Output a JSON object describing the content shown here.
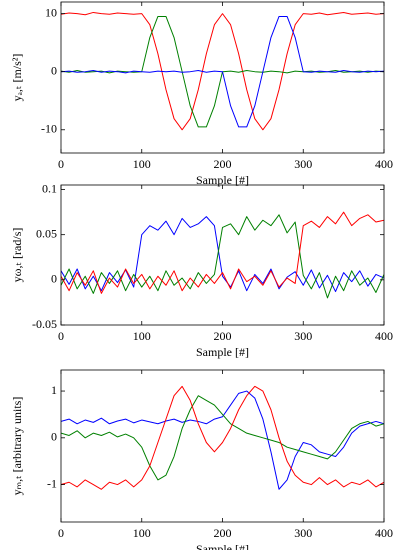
{
  "chart_data": [
    {
      "type": "line",
      "xlabel": "Sample [#]",
      "ylabel": "yₐ,ₜ [m/s²]",
      "xlim": [
        0,
        400
      ],
      "xticks": [
        0,
        100,
        200,
        300,
        400
      ],
      "ylim": [
        -14,
        12
      ],
      "yticks": [
        -10,
        0,
        10
      ],
      "x": [
        0,
        10,
        20,
        30,
        40,
        50,
        60,
        70,
        80,
        90,
        100,
        110,
        120,
        130,
        140,
        150,
        160,
        170,
        180,
        190,
        200,
        210,
        220,
        230,
        240,
        250,
        260,
        270,
        280,
        290,
        300,
        310,
        320,
        330,
        340,
        350,
        360,
        370,
        380,
        390,
        400
      ],
      "series": [
        {
          "color": "#ff0000",
          "values": [
            9.9,
            10.1,
            10,
            9.8,
            10.2,
            10,
            9.9,
            10.1,
            10,
            9.9,
            10,
            8.09,
            3.09,
            -3.09,
            -8.09,
            -10,
            -8.09,
            -3.09,
            3.09,
            8.09,
            10,
            8.09,
            3.09,
            -3.09,
            -8.09,
            -10,
            -8.09,
            -3.09,
            3.09,
            8.09,
            10,
            9.9,
            10.1,
            9.8,
            10,
            10.2,
            9.9,
            10,
            10.1,
            9.9,
            10
          ]
        },
        {
          "color": "#008000",
          "values": [
            0.1,
            -0.1,
            0.2,
            -0.1,
            0,
            0.1,
            -0.2,
            0.1,
            0,
            -0.1,
            0,
            5.88,
            9.51,
            9.51,
            5.88,
            0,
            -5.88,
            -9.51,
            -9.51,
            -5.88,
            0,
            0.1,
            -0.1,
            0.2,
            0,
            -0.1,
            0.1,
            0,
            -0.2,
            0.1,
            0,
            0.1,
            -0.1,
            0,
            0.2,
            -0.1,
            0,
            0.1,
            -0.1,
            0.1,
            0
          ]
        },
        {
          "color": "#0000ff",
          "values": [
            0,
            0.1,
            -0.1,
            0,
            0.2,
            -0.1,
            0.1,
            0,
            -0.2,
            0.1,
            0,
            -0.1,
            0.1,
            0,
            0.1,
            -0.1,
            0,
            0.2,
            -0.1,
            0.1,
            0,
            -5.88,
            -9.51,
            -9.51,
            -5.88,
            0,
            5.88,
            9.51,
            9.51,
            5.88,
            0,
            -0.1,
            0.1,
            0,
            -0.1,
            0.2,
            0,
            -0.1,
            0.1,
            0,
            0.1
          ]
        }
      ]
    },
    {
      "type": "line",
      "xlabel": "Sample [#]",
      "ylabel": "yω,ₜ [rad/s]",
      "xlim": [
        0,
        400
      ],
      "xticks": [
        0,
        100,
        200,
        300,
        400
      ],
      "ylim": [
        -0.05,
        0.105
      ],
      "yticks": [
        -0.05,
        0,
        0.05,
        0.1
      ],
      "x": [
        0,
        10,
        20,
        30,
        40,
        50,
        60,
        70,
        80,
        90,
        100,
        110,
        120,
        130,
        140,
        150,
        160,
        170,
        180,
        190,
        200,
        210,
        220,
        230,
        240,
        250,
        260,
        270,
        280,
        290,
        300,
        310,
        320,
        330,
        340,
        350,
        360,
        370,
        380,
        390,
        400
      ],
      "series": [
        {
          "color": "#0000ff",
          "values": [
            0.01,
            -0.005,
            0.012,
            -0.01,
            0.004,
            -0.012,
            0.008,
            -0.003,
            0.011,
            -0.008,
            0.05,
            0.06,
            0.055,
            0.065,
            0.05,
            0.068,
            0.058,
            0.062,
            0.07,
            0.06,
            0.004,
            -0.008,
            0.01,
            -0.012,
            0.006,
            -0.004,
            0.012,
            -0.01,
            0.003,
            0.009,
            -0.006,
            0.011,
            -0.009,
            0.005,
            -0.013,
            0.008,
            -0.002,
            0.01,
            -0.007,
            0.006,
            0.002
          ]
        },
        {
          "color": "#008000",
          "values": [
            -0.006,
            0.012,
            -0.01,
            0.004,
            -0.015,
            0.008,
            -0.004,
            0.01,
            -0.012,
            0.006,
            -0.008,
            0.004,
            -0.012,
            0.01,
            -0.006,
            0.002,
            -0.01,
            0.008,
            -0.004,
            0.006,
            0.058,
            0.062,
            0.05,
            0.07,
            0.055,
            0.066,
            0.06,
            0.072,
            0.052,
            0.064,
            0.005,
            -0.01,
            0.008,
            -0.02,
            0.004,
            -0.012,
            0.01,
            -0.006,
            0.002,
            -0.014,
            0.006
          ]
        },
        {
          "color": "#ff0000",
          "values": [
            0.004,
            -0.012,
            0.008,
            -0.006,
            0.01,
            -0.015,
            0.002,
            -0.008,
            0.012,
            -0.004,
            0.006,
            -0.01,
            0.004,
            -0.006,
            0.01,
            -0.012,
            0.002,
            -0.008,
            0.006,
            -0.004,
            0.008,
            -0.01,
            0.012,
            -0.002,
            0.004,
            -0.006,
            0.01,
            -0.008,
            0.002,
            -0.004,
            0.06,
            0.065,
            0.058,
            0.07,
            0.062,
            0.075,
            0.06,
            0.068,
            0.072,
            0.064,
            0.066
          ]
        }
      ]
    },
    {
      "type": "line",
      "xlabel": "Sample [#]",
      "ylabel": "yₘ,ₜ [arbitrary units]",
      "xlim": [
        0,
        400
      ],
      "xticks": [
        0,
        100,
        200,
        300,
        400
      ],
      "ylim": [
        -1.8,
        1.45
      ],
      "yticks": [
        -1,
        0,
        1
      ],
      "x": [
        0,
        10,
        20,
        30,
        40,
        50,
        60,
        70,
        80,
        90,
        100,
        110,
        120,
        130,
        140,
        150,
        160,
        170,
        180,
        190,
        200,
        210,
        220,
        230,
        240,
        250,
        260,
        270,
        280,
        290,
        300,
        310,
        320,
        330,
        340,
        350,
        360,
        370,
        380,
        390,
        400
      ],
      "series": [
        {
          "color": "#0000ff",
          "values": [
            0.35,
            0.4,
            0.3,
            0.38,
            0.33,
            0.42,
            0.3,
            0.36,
            0.4,
            0.32,
            0.38,
            0.34,
            0.3,
            0.36,
            0.4,
            0.33,
            0.38,
            0.35,
            0.3,
            0.4,
            0.45,
            0.7,
            0.95,
            1.0,
            0.85,
            0.4,
            -0.3,
            -1.1,
            -0.9,
            -0.4,
            -0.1,
            -0.15,
            -0.3,
            -0.35,
            -0.4,
            -0.2,
            0.1,
            0.25,
            0.3,
            0.35,
            0.3
          ]
        },
        {
          "color": "#008000",
          "values": [
            0.1,
            0.05,
            0.15,
            0.0,
            0.1,
            0.05,
            0.12,
            0.02,
            0.08,
            0.0,
            -0.2,
            -0.6,
            -0.9,
            -0.8,
            -0.4,
            0.2,
            0.6,
            0.9,
            0.8,
            0.7,
            0.5,
            0.3,
            0.2,
            0.1,
            0.05,
            0.0,
            -0.05,
            -0.1,
            -0.2,
            -0.25,
            -0.3,
            -0.35,
            -0.4,
            -0.45,
            -0.3,
            -0.05,
            0.2,
            0.3,
            0.35,
            0.25,
            0.3
          ]
        },
        {
          "color": "#ff0000",
          "values": [
            -1.0,
            -0.95,
            -1.05,
            -0.9,
            -1.0,
            -1.1,
            -0.95,
            -1.0,
            -0.9,
            -1.05,
            -0.9,
            -0.6,
            -0.1,
            0.4,
            0.9,
            1.1,
            0.8,
            0.3,
            -0.1,
            -0.3,
            -0.1,
            0.2,
            0.6,
            0.9,
            1.1,
            1.0,
            0.6,
            0.0,
            -0.5,
            -0.8,
            -0.95,
            -1.0,
            -0.85,
            -1.0,
            -0.9,
            -1.05,
            -0.95,
            -1.0,
            -0.9,
            -1.05,
            -0.95
          ]
        }
      ]
    }
  ]
}
